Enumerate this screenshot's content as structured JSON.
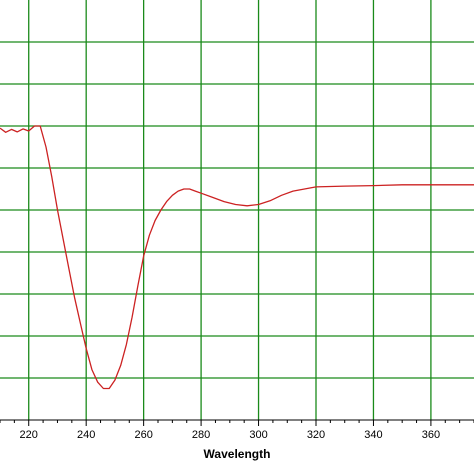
{
  "chart_data": {
    "type": "line",
    "title": "",
    "xlabel": "Wavelength",
    "ylabel": "",
    "xlim": [
      210,
      375
    ],
    "ylim": [
      -5,
      5
    ],
    "x_ticks": [
      220,
      240,
      260,
      280,
      300,
      320,
      340,
      360
    ],
    "y_gridlines": [
      -4,
      -3,
      -2,
      -1,
      0,
      1,
      2,
      3,
      4
    ],
    "grid": true,
    "legend": "none",
    "colors": {
      "grid": "#1a8a1a",
      "line": "#cc2222",
      "axis": "#000000",
      "background": "#ffffff"
    },
    "series": [
      {
        "points": [
          [
            210,
            1.95
          ],
          [
            212,
            1.85
          ],
          [
            214,
            1.92
          ],
          [
            216,
            1.86
          ],
          [
            218,
            1.93
          ],
          [
            220,
            1.88
          ],
          [
            222,
            2.0
          ],
          [
            224,
            2.0
          ],
          [
            226,
            1.5
          ],
          [
            228,
            0.8
          ],
          [
            230,
            0.0
          ],
          [
            232,
            -0.7
          ],
          [
            234,
            -1.4
          ],
          [
            236,
            -2.1
          ],
          [
            238,
            -2.7
          ],
          [
            240,
            -3.3
          ],
          [
            242,
            -3.8
          ],
          [
            244,
            -4.1
          ],
          [
            246,
            -4.25
          ],
          [
            248,
            -4.25
          ],
          [
            250,
            -4.05
          ],
          [
            252,
            -3.7
          ],
          [
            254,
            -3.2
          ],
          [
            256,
            -2.55
          ],
          [
            258,
            -1.8
          ],
          [
            260,
            -1.1
          ],
          [
            262,
            -0.6
          ],
          [
            264,
            -0.25
          ],
          [
            266,
            0.0
          ],
          [
            268,
            0.2
          ],
          [
            270,
            0.35
          ],
          [
            272,
            0.45
          ],
          [
            274,
            0.5
          ],
          [
            276,
            0.5
          ],
          [
            278,
            0.45
          ],
          [
            280,
            0.4
          ],
          [
            284,
            0.3
          ],
          [
            288,
            0.2
          ],
          [
            292,
            0.13
          ],
          [
            296,
            0.1
          ],
          [
            300,
            0.13
          ],
          [
            304,
            0.22
          ],
          [
            308,
            0.35
          ],
          [
            312,
            0.45
          ],
          [
            316,
            0.5
          ],
          [
            320,
            0.55
          ],
          [
            330,
            0.57
          ],
          [
            340,
            0.58
          ],
          [
            350,
            0.6
          ],
          [
            360,
            0.6
          ],
          [
            370,
            0.6
          ],
          [
            375,
            0.6
          ]
        ]
      }
    ]
  }
}
